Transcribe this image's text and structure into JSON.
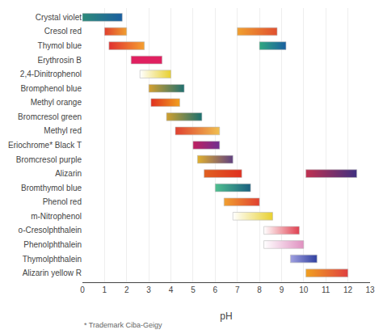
{
  "chart_data": {
    "type": "range_bar",
    "orientation": "horizontal",
    "xlabel": "pH",
    "footnote": "* Trademark Ciba-Geigy",
    "categories": [
      "Crystal violet",
      "Cresol red",
      "Thymol blue",
      "Erythrosin B",
      "2,4-Dinitrophenol",
      "Bromphenol blue",
      "Methyl orange",
      "Bromcresol green",
      "Methyl red",
      "Eriochrome* Black T",
      "Bromcresol purple",
      "Alizarin",
      "Bromthymol blue",
      "Phenol red",
      "m-Nitrophenol",
      "o-Cresolphthalein",
      "Phenolphthalein",
      "Thymolphthalein",
      "Alizarin yellow R"
    ],
    "values": [
      [
        {
          "start": 0.0,
          "end": 1.8,
          "colors": [
            "#2d8a7a",
            "#1a5fa0"
          ]
        }
      ],
      [
        {
          "start": 1.0,
          "end": 2.0,
          "colors": [
            "#e04030",
            "#f0a030"
          ]
        },
        {
          "start": 7.0,
          "end": 8.8,
          "colors": [
            "#f0a030",
            "#e05030"
          ]
        }
      ],
      [
        {
          "start": 1.2,
          "end": 2.8,
          "colors": [
            "#e03030",
            "#f5a030"
          ]
        },
        {
          "start": 8.0,
          "end": 9.2,
          "colors": [
            "#30a880",
            "#1a5fa0"
          ]
        }
      ],
      [
        {
          "start": 2.2,
          "end": 3.6,
          "colors": [
            "#e02060",
            "#e02060"
          ]
        }
      ],
      [
        {
          "start": 2.6,
          "end": 4.0,
          "colors": [
            "#ffffff",
            "#e8d030"
          ]
        }
      ],
      [
        {
          "start": 3.0,
          "end": 4.6,
          "colors": [
            "#d4a030",
            "#207070"
          ]
        }
      ],
      [
        {
          "start": 3.1,
          "end": 4.4,
          "colors": [
            "#e03020",
            "#f0a020"
          ]
        }
      ],
      [
        {
          "start": 3.8,
          "end": 5.4,
          "colors": [
            "#d0a030",
            "#1a7070"
          ]
        }
      ],
      [
        {
          "start": 4.2,
          "end": 6.2,
          "colors": [
            "#e04030",
            "#f0c050"
          ]
        }
      ],
      [
        {
          "start": 5.0,
          "end": 6.2,
          "colors": [
            "#c02060",
            "#703090"
          ]
        }
      ],
      [
        {
          "start": 5.2,
          "end": 6.8,
          "colors": [
            "#e0b030",
            "#604080"
          ]
        }
      ],
      [
        {
          "start": 5.5,
          "end": 7.2,
          "colors": [
            "#e06020",
            "#e03020"
          ]
        },
        {
          "start": 10.1,
          "end": 12.4,
          "colors": [
            "#c03050",
            "#403080"
          ]
        }
      ],
      [
        {
          "start": 6.0,
          "end": 7.6,
          "colors": [
            "#50c090",
            "#1a6080"
          ]
        }
      ],
      [
        {
          "start": 6.4,
          "end": 8.0,
          "colors": [
            "#f0a030",
            "#e04030"
          ]
        }
      ],
      [
        {
          "start": 6.8,
          "end": 8.6,
          "colors": [
            "#ffffff",
            "#e8d030"
          ]
        }
      ],
      [
        {
          "start": 8.2,
          "end": 9.8,
          "colors": [
            "#ffffff",
            "#e04050"
          ]
        }
      ],
      [
        {
          "start": 8.2,
          "end": 10.0,
          "colors": [
            "#ffffff",
            "#e090c0"
          ]
        }
      ],
      [
        {
          "start": 9.4,
          "end": 10.6,
          "colors": [
            "#a0a0e0",
            "#3040a0"
          ]
        }
      ],
      [
        {
          "start": 10.1,
          "end": 12.0,
          "colors": [
            "#f0a020",
            "#e04040"
          ]
        }
      ]
    ],
    "xlim": [
      0,
      13
    ],
    "xticks": [
      0,
      1,
      2,
      3,
      4,
      5,
      6,
      7,
      8,
      9,
      10,
      11,
      12,
      13
    ],
    "grid": true
  }
}
